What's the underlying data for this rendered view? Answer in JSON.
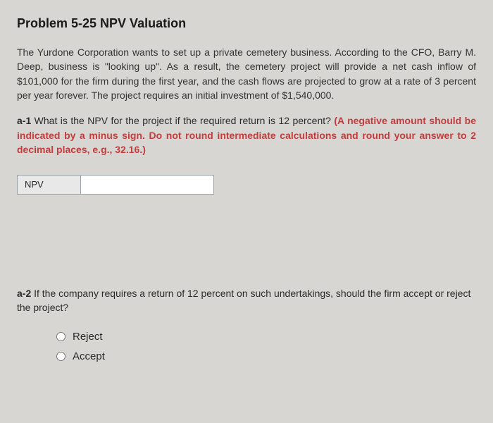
{
  "title": "Problem 5-25 NPV Valuation",
  "intro": "The Yurdone Corporation wants to set up a private cemetery business. According to the CFO, Barry M. Deep, business is \"looking up\". As a result, the cemetery project will provide a net cash inflow of $101,000 for the firm during the first year, and the cash flows are projected to grow at a rate of 3 percent per year forever. The project requires an initial investment of $1,540,000.",
  "a1": {
    "label": "a-1",
    "question_black": " What is the NPV for the project if the required return is 12 percent? ",
    "question_red": "(A negative amount should be indicated by a minus sign. Do not round intermediate calculations and round your answer to 2 decimal places, e.g., 32.16.)"
  },
  "npv": {
    "label": "NPV",
    "value": ""
  },
  "a2": {
    "label": "a-2",
    "question": " If the company requires a return of 12 percent on such undertakings, should the firm accept or reject the project?"
  },
  "options": {
    "reject": "Reject",
    "accept": "Accept"
  }
}
